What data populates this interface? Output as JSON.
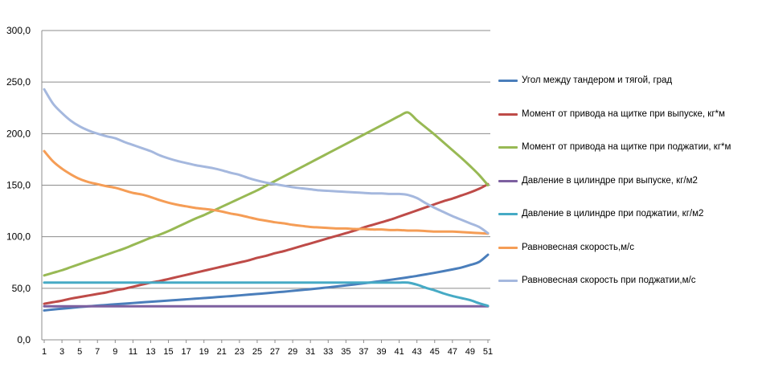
{
  "chart_data": {
    "type": "line",
    "x": [
      1,
      2,
      3,
      4,
      5,
      6,
      7,
      8,
      9,
      10,
      11,
      12,
      13,
      14,
      15,
      16,
      17,
      18,
      19,
      20,
      21,
      22,
      23,
      24,
      25,
      26,
      27,
      28,
      29,
      30,
      31,
      32,
      33,
      34,
      35,
      36,
      37,
      38,
      39,
      40,
      41,
      42,
      43,
      44,
      45,
      46,
      47,
      48,
      49,
      50,
      51
    ],
    "x_tick_labels": [
      "1",
      "3",
      "5",
      "7",
      "9",
      "11",
      "13",
      "15",
      "17",
      "19",
      "21",
      "23",
      "25",
      "27",
      "29",
      "31",
      "33",
      "35",
      "37",
      "39",
      "41",
      "43",
      "45",
      "47",
      "49",
      "51"
    ],
    "y_tick_labels": [
      "0,0",
      "50,0",
      "100,0",
      "150,0",
      "200,0",
      "250,0",
      "300,0"
    ],
    "ylim": [
      0,
      300
    ],
    "grid": true,
    "legend_position": "right",
    "series": [
      {
        "name": "Угол между тандером и тягой, град",
        "color": "#4A7EBB",
        "values": [
          28.5,
          29.4,
          30.2,
          31.0,
          31.8,
          32.5,
          33.2,
          33.8,
          34.5,
          35.1,
          35.7,
          36.3,
          36.9,
          37.5,
          38.1,
          38.7,
          39.3,
          39.9,
          40.5,
          41.1,
          41.8,
          42.4,
          43.1,
          43.8,
          44.5,
          45.2,
          46.0,
          46.7,
          47.5,
          48.3,
          49.1,
          50.0,
          50.9,
          51.8,
          52.8,
          53.8,
          54.8,
          55.9,
          57.0,
          58.2,
          59.4,
          60.7,
          62.0,
          63.5,
          65.0,
          66.6,
          68.3,
          70.1,
          72.6,
          75.5,
          82.5
        ]
      },
      {
        "name": "Момент от привода на щитке при выпуске, кг*м",
        "color": "#BE4B48",
        "values": [
          35.0,
          36.5,
          38.0,
          40.0,
          41.5,
          43.0,
          44.5,
          46.0,
          48.0,
          49.5,
          51.5,
          53.5,
          55.5,
          57.0,
          59.0,
          61.0,
          63.0,
          65.0,
          67.0,
          69.0,
          71.0,
          73.0,
          75.0,
          77.0,
          79.5,
          81.5,
          84.0,
          86.0,
          88.5,
          91.0,
          93.5,
          96.0,
          98.5,
          101.0,
          103.5,
          106.0,
          109.0,
          111.5,
          114.0,
          116.5,
          119.5,
          122.5,
          125.5,
          128.5,
          131.5,
          134.5,
          137.0,
          140.0,
          143.0,
          146.5,
          151.0
        ]
      },
      {
        "name": "Момент от привода на щитке при поджатии, кг*м",
        "color": "#98B954",
        "values": [
          62.5,
          65.0,
          67.5,
          70.5,
          73.5,
          76.5,
          79.5,
          82.5,
          85.5,
          88.5,
          92.0,
          95.5,
          99.0,
          102.0,
          105.5,
          109.5,
          113.5,
          117.5,
          121.0,
          125.0,
          129.0,
          133.0,
          137.0,
          141.0,
          145.0,
          149.5,
          154.0,
          158.5,
          163.0,
          167.5,
          172.0,
          176.5,
          181.0,
          185.5,
          190.0,
          194.5,
          199.0,
          203.5,
          208.0,
          212.5,
          217.0,
          220.5,
          213.0,
          206.0,
          199.0,
          191.5,
          184.0,
          176.5,
          168.5,
          160.0,
          150.0
        ]
      },
      {
        "name": "Давление  в цилиндре  при выпуске, кг/м2",
        "color": "#7D60A0",
        "values": [
          32.5,
          32.5,
          32.5,
          32.5,
          32.5,
          32.5,
          32.5,
          32.5,
          32.5,
          32.5,
          32.5,
          32.5,
          32.5,
          32.5,
          32.5,
          32.5,
          32.5,
          32.5,
          32.5,
          32.5,
          32.5,
          32.5,
          32.5,
          32.5,
          32.5,
          32.5,
          32.5,
          32.5,
          32.5,
          32.5,
          32.5,
          32.5,
          32.5,
          32.5,
          32.5,
          32.5,
          32.5,
          32.5,
          32.5,
          32.5,
          32.5,
          32.5,
          32.5,
          32.5,
          32.5,
          32.5,
          32.5,
          32.5,
          32.5,
          32.5,
          32.5
        ]
      },
      {
        "name": "Давление  в цилиндре  при поджатии,  кг/м2",
        "color": "#46AAC5",
        "values": [
          55.5,
          55.5,
          55.5,
          55.5,
          55.5,
          55.5,
          55.5,
          55.5,
          55.5,
          55.5,
          55.5,
          55.5,
          55.5,
          55.5,
          55.5,
          55.5,
          55.5,
          55.5,
          55.5,
          55.5,
          55.5,
          55.5,
          55.5,
          55.5,
          55.5,
          55.5,
          55.5,
          55.5,
          55.5,
          55.5,
          55.5,
          55.5,
          55.5,
          55.5,
          55.5,
          55.5,
          55.5,
          55.5,
          55.5,
          55.5,
          55.5,
          55.5,
          53.5,
          50.5,
          48.0,
          45.0,
          42.5,
          40.5,
          38.5,
          35.5,
          33.0
        ]
      },
      {
        "name": "Равновесная скорость,м/с",
        "color": "#F59D56",
        "values": [
          183.0,
          173.0,
          166.0,
          160.5,
          156.0,
          153.0,
          151.0,
          149.0,
          147.5,
          145.0,
          142.5,
          141.0,
          138.5,
          135.5,
          133.0,
          131.0,
          129.5,
          128.0,
          127.0,
          126.0,
          124.5,
          122.5,
          121.0,
          119.0,
          117.0,
          115.5,
          114.0,
          113.0,
          111.5,
          110.5,
          109.5,
          109.0,
          108.5,
          108.0,
          108.0,
          107.5,
          107.5,
          107.0,
          107.0,
          106.5,
          106.5,
          106.0,
          106.0,
          105.5,
          105.0,
          105.0,
          105.0,
          104.5,
          104.0,
          103.5,
          103.0
        ]
      },
      {
        "name": "Равновесная скорость при поджатии,м/с",
        "color": "#A5B8DE",
        "values": [
          243.0,
          229.0,
          220.0,
          212.5,
          207.0,
          203.0,
          200.0,
          197.5,
          195.5,
          192.0,
          189.0,
          186.0,
          183.0,
          179.0,
          176.0,
          173.5,
          171.5,
          169.5,
          168.0,
          166.5,
          164.5,
          162.0,
          160.0,
          157.0,
          154.5,
          152.5,
          151.0,
          149.5,
          148.0,
          147.0,
          146.0,
          145.0,
          144.5,
          144.0,
          143.5,
          143.0,
          142.5,
          142.0,
          142.0,
          141.5,
          141.5,
          140.5,
          137.5,
          132.5,
          128.0,
          124.0,
          120.0,
          116.5,
          113.0,
          109.5,
          103.5
        ]
      }
    ]
  }
}
